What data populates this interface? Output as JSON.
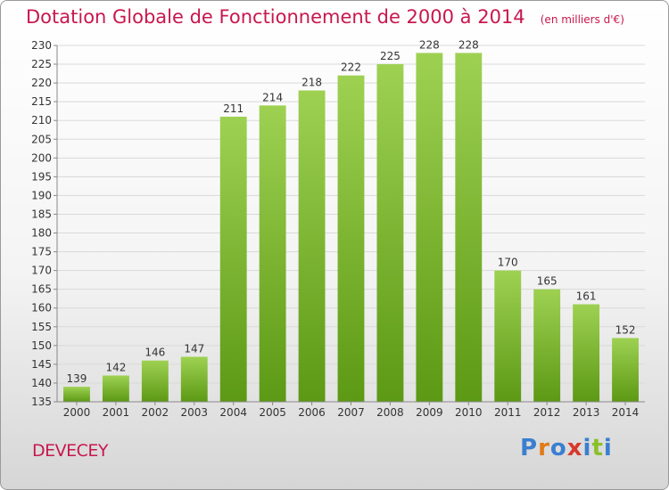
{
  "title": "Dotation Globale de Fonctionnement de 2000 à 2014",
  "subtitle": "(en milliers d'€)",
  "place": "DEVECEY",
  "logo": "Proxiti",
  "colors": {
    "title": "#c8174f",
    "bar_top": "#9ed152",
    "bar_bottom": "#5c9914",
    "grid": "#d9d9d9",
    "axis": "#888888",
    "label": "#333333"
  },
  "chart_data": {
    "type": "bar",
    "title": "Dotation Globale de Fonctionnement de 2000 à 2014",
    "subtitle": "(en milliers d'€)",
    "xlabel": "",
    "ylabel": "",
    "categories": [
      "2000",
      "2001",
      "2002",
      "2003",
      "2004",
      "2005",
      "2006",
      "2007",
      "2008",
      "2009",
      "2010",
      "2011",
      "2012",
      "2013",
      "2014"
    ],
    "values": [
      139,
      142,
      146,
      147,
      211,
      214,
      218,
      222,
      225,
      228,
      228,
      170,
      165,
      161,
      152
    ],
    "ylim": [
      135,
      230
    ],
    "yticks": [
      135,
      140,
      145,
      150,
      155,
      160,
      165,
      170,
      175,
      180,
      185,
      190,
      195,
      200,
      205,
      210,
      215,
      220,
      225,
      230
    ],
    "grid": true,
    "legend": "none"
  }
}
